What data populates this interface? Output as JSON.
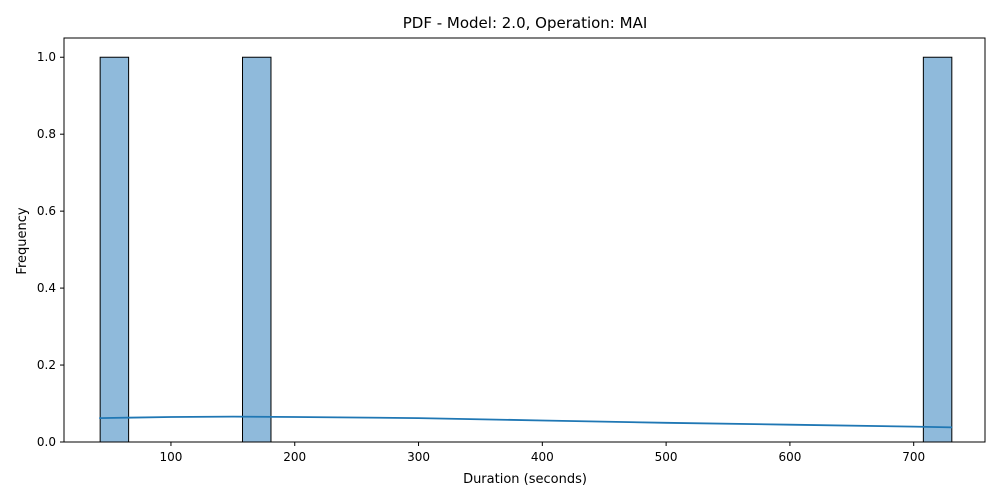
{
  "chart_data": {
    "type": "bar",
    "title": "PDF - Model: 2.0, Operation: MAI",
    "xlabel": "Duration (seconds)",
    "ylabel": "Frequency",
    "xlim": [
      13.6,
      757.6
    ],
    "ylim": [
      0,
      1.05
    ],
    "xticks": [
      100,
      200,
      300,
      400,
      500,
      600,
      700
    ],
    "yticks": [
      0.0,
      0.2,
      0.4,
      0.6,
      0.8,
      1.0
    ],
    "bins": [
      {
        "x0": 42.8,
        "x1": 65.8,
        "count": 1
      },
      {
        "x0": 157.8,
        "x1": 180.8,
        "count": 1
      },
      {
        "x0": 707.8,
        "x1": 730.8,
        "count": 1
      }
    ],
    "kde": {
      "x": [
        42,
        100,
        150,
        200,
        300,
        400,
        500,
        600,
        700,
        731
      ],
      "y": [
        0.062,
        0.065,
        0.066,
        0.065,
        0.062,
        0.056,
        0.05,
        0.045,
        0.04,
        0.038
      ]
    },
    "grid": false,
    "legend": "none",
    "colors": {
      "bar_fill": "#8fbadb",
      "bar_edge": "#000000",
      "kde_line": "#1f77b4",
      "axis": "#000000"
    }
  }
}
